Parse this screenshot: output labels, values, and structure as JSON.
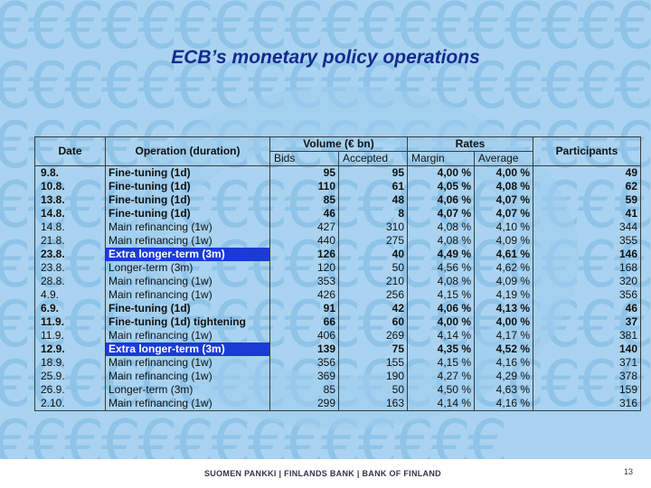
{
  "slide": {
    "title": "ECB’s monetary policy operations",
    "footer": "SUOMEN PANKKI | FINLANDS BANK | BANK OF FINLAND",
    "page_number": "13",
    "colors": {
      "title": "#152a8f",
      "highlight": "#1a3bd6",
      "background": "#a9d3f0"
    },
    "background_icon": "euro-sign-icon"
  },
  "table": {
    "headers": {
      "date": "Date",
      "operation": "Operation (duration)",
      "volume": "Volume (€ bn)",
      "rates": "Rates",
      "participants": "Participants"
    },
    "subheaders": {
      "bids": "Bids",
      "accepted": "Accepted",
      "margin": "Margin",
      "average": "Average"
    },
    "rows": [
      {
        "date": "9.8.",
        "operation": "Fine-tuning (1d)",
        "bids": "95",
        "accepted": "95",
        "margin": "4,00 %",
        "average": "4,00 %",
        "participants": "49",
        "bold": true,
        "highlight": false
      },
      {
        "date": "10.8.",
        "operation": "Fine-tuning (1d)",
        "bids": "110",
        "accepted": "61",
        "margin": "4,05 %",
        "average": "4,08 %",
        "participants": "62",
        "bold": true,
        "highlight": false
      },
      {
        "date": "13.8.",
        "operation": "Fine-tuning (1d)",
        "bids": "85",
        "accepted": "48",
        "margin": "4,06 %",
        "average": "4,07 %",
        "participants": "59",
        "bold": true,
        "highlight": false
      },
      {
        "date": "14.8.",
        "operation": "Fine-tuning (1d)",
        "bids": "46",
        "accepted": "8",
        "margin": "4,07 %",
        "average": "4,07 %",
        "participants": "41",
        "bold": true,
        "highlight": false
      },
      {
        "date": "14.8.",
        "operation": "Main refinancing (1w)",
        "bids": "427",
        "accepted": "310",
        "margin": "4,08 %",
        "average": "4,10 %",
        "participants": "344",
        "bold": false,
        "highlight": false
      },
      {
        "date": "21.8.",
        "operation": "Main refinancing (1w)",
        "bids": "440",
        "accepted": "275",
        "margin": "4,08 %",
        "average": "4,09 %",
        "participants": "355",
        "bold": false,
        "highlight": false
      },
      {
        "date": "23.8.",
        "operation": "Extra longer-term (3m)",
        "bids": "126",
        "accepted": "40",
        "margin": "4,49 %",
        "average": "4,61 %",
        "participants": "146",
        "bold": true,
        "highlight": true
      },
      {
        "date": "23.8.",
        "operation": "Longer-term (3m)",
        "bids": "120",
        "accepted": "50",
        "margin": "4,56 %",
        "average": "4,62 %",
        "participants": "168",
        "bold": false,
        "highlight": false
      },
      {
        "date": "28.8.",
        "operation": "Main refinancing (1w)",
        "bids": "353",
        "accepted": "210",
        "margin": "4,08 %",
        "average": "4,09 %",
        "participants": "320",
        "bold": false,
        "highlight": false
      },
      {
        "date": "4.9.",
        "operation": "Main refinancing (1w)",
        "bids": "426",
        "accepted": "256",
        "margin": "4,15 %",
        "average": "4,19 %",
        "participants": "356",
        "bold": false,
        "highlight": false
      },
      {
        "date": "6.9.",
        "operation": "Fine-tuning (1d)",
        "bids": "91",
        "accepted": "42",
        "margin": "4,06 %",
        "average": "4,13 %",
        "participants": "46",
        "bold": true,
        "highlight": false
      },
      {
        "date": "11.9.",
        "operation": "Fine-tuning (1d) tightening",
        "bids": "66",
        "accepted": "60",
        "margin": "4,00 %",
        "average": "4,00 %",
        "participants": "37",
        "bold": true,
        "highlight": false
      },
      {
        "date": "11.9.",
        "operation": "Main refinancing (1w)",
        "bids": "406",
        "accepted": "269",
        "margin": "4,14 %",
        "average": "4,17 %",
        "participants": "381",
        "bold": false,
        "highlight": false
      },
      {
        "date": "12.9.",
        "operation": "Extra longer-term (3m)",
        "bids": "139",
        "accepted": "75",
        "margin": "4,35 %",
        "average": "4,52 %",
        "participants": "140",
        "bold": true,
        "highlight": true
      },
      {
        "date": "18.9.",
        "operation": "Main refinancing (1w)",
        "bids": "356",
        "accepted": "155",
        "margin": "4,15 %",
        "average": "4,16 %",
        "participants": "371",
        "bold": false,
        "highlight": false
      },
      {
        "date": "25.9.",
        "operation": "Main refinancing (1w)",
        "bids": "369",
        "accepted": "190",
        "margin": "4,27 %",
        "average": "4,29 %",
        "participants": "378",
        "bold": false,
        "highlight": false
      },
      {
        "date": "26.9.",
        "operation": "Longer-term (3m)",
        "bids": "85",
        "accepted": "50",
        "margin": "4,50 %",
        "average": "4,63 %",
        "participants": "159",
        "bold": false,
        "highlight": false
      },
      {
        "date": "2.10.",
        "operation": "Main refinancing (1w)",
        "bids": "299",
        "accepted": "163",
        "margin": "4,14 %",
        "average": "4,16 %",
        "participants": "316",
        "bold": false,
        "highlight": false
      }
    ]
  }
}
